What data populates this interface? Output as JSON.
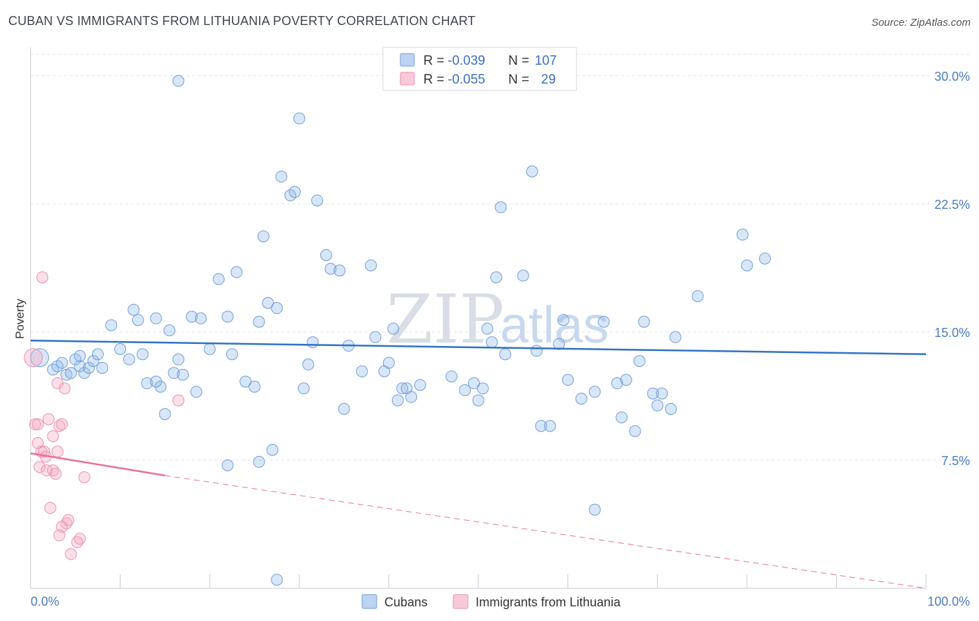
{
  "title": "CUBAN VS IMMIGRANTS FROM LITHUANIA POVERTY CORRELATION CHART",
  "source": "Source: ZipAtlas.com",
  "watermark": {
    "zip": "ZIP",
    "atlas": "atlas"
  },
  "colors": {
    "cubans": "#8fb6e8",
    "cubans_line": "#2f72c8",
    "lithuania": "#f3a7bf",
    "lithuania_line": "#e8709a",
    "grid": "#dde2ea",
    "tick_label": "#4a7cc7"
  },
  "legend_top": {
    "r_label": "R =",
    "n_label": "N =",
    "rows": [
      {
        "series": "Cubans",
        "r": "-0.039",
        "n": "107"
      },
      {
        "series": "Immigrants from Lithuania",
        "r": "-0.055",
        "n": "29"
      }
    ]
  },
  "chart_data": {
    "type": "scatter",
    "title": "CUBAN VS IMMIGRANTS FROM LITHUANIA POVERTY CORRELATION CHART",
    "xlabel": "",
    "ylabel": "Poverty",
    "xlim": [
      0,
      100
    ],
    "ylim": [
      0,
      31.5
    ],
    "y_ticks": [
      7.5,
      15.0,
      22.5,
      30.0
    ],
    "y_tick_labels": [
      "7.5%",
      "15.0%",
      "22.5%",
      "30.0%"
    ],
    "x_tick_labels": [
      "0.0%",
      "100.0%"
    ],
    "grid": true,
    "legend": "top-center",
    "series": [
      {
        "name": "Cubans",
        "trend": {
          "x": [
            0,
            100
          ],
          "y": [
            14.5,
            13.7
          ]
        },
        "points": [
          [
            1,
            13.5
          ],
          [
            2.5,
            12.8
          ],
          [
            3,
            13.0
          ],
          [
            3.5,
            13.2
          ],
          [
            4,
            12.5
          ],
          [
            4.5,
            12.6
          ],
          [
            5,
            13.4
          ],
          [
            5.5,
            13.0
          ],
          [
            6,
            12.6
          ],
          [
            6.5,
            12.9
          ],
          [
            7,
            13.3
          ],
          [
            8,
            12.9
          ],
          [
            5.5,
            13.6
          ],
          [
            7.5,
            13.7
          ],
          [
            9,
            15.4
          ],
          [
            10,
            14.0
          ],
          [
            11,
            13.4
          ],
          [
            11.5,
            16.3
          ],
          [
            12,
            15.7
          ],
          [
            12.5,
            13.7
          ],
          [
            13,
            12.0
          ],
          [
            14,
            15.8
          ],
          [
            14.5,
            11.8
          ],
          [
            15,
            10.2
          ],
          [
            15.5,
            15.1
          ],
          [
            16,
            12.6
          ],
          [
            16.5,
            13.4
          ],
          [
            17,
            12.5
          ],
          [
            18,
            15.9
          ],
          [
            18.5,
            11.5
          ],
          [
            19,
            15.8
          ],
          [
            20,
            14.0
          ],
          [
            21,
            18.1
          ],
          [
            22,
            15.9
          ],
          [
            22.5,
            13.7
          ],
          [
            23,
            18.5
          ],
          [
            16.5,
            29.7
          ],
          [
            24,
            12.1
          ],
          [
            25,
            11.8
          ],
          [
            25.5,
            15.6
          ],
          [
            26,
            20.6
          ],
          [
            26.5,
            16.7
          ],
          [
            27.5,
            16.4
          ],
          [
            28,
            24.1
          ],
          [
            29,
            23.0
          ],
          [
            29.5,
            23.2
          ],
          [
            30,
            27.5
          ],
          [
            30.5,
            11.7
          ],
          [
            31,
            13.1
          ],
          [
            31.5,
            14.4
          ],
          [
            32,
            22.7
          ],
          [
            33,
            19.5
          ],
          [
            33.5,
            18.7
          ],
          [
            34.5,
            18.6
          ],
          [
            35,
            10.5
          ],
          [
            35.5,
            14.2
          ],
          [
            37,
            12.7
          ],
          [
            38,
            18.9
          ],
          [
            38.5,
            14.7
          ],
          [
            39.5,
            12.7
          ],
          [
            40,
            13.2
          ],
          [
            40.5,
            15.2
          ],
          [
            41,
            11.0
          ],
          [
            41.5,
            11.7
          ],
          [
            42,
            11.7
          ],
          [
            42.5,
            11.2
          ],
          [
            43.5,
            11.9
          ],
          [
            47,
            12.4
          ],
          [
            48.5,
            11.6
          ],
          [
            49.5,
            12.0
          ],
          [
            50,
            11.0
          ],
          [
            50.5,
            11.7
          ],
          [
            51,
            15.2
          ],
          [
            51.5,
            14.4
          ],
          [
            52,
            18.2
          ],
          [
            52.5,
            22.3
          ],
          [
            53,
            13.7
          ],
          [
            55,
            18.3
          ],
          [
            56,
            24.4
          ],
          [
            56.5,
            13.9
          ],
          [
            57,
            9.5
          ],
          [
            58,
            9.5
          ],
          [
            59,
            14.3
          ],
          [
            59.5,
            15.7
          ],
          [
            60,
            12.2
          ],
          [
            61.5,
            11.1
          ],
          [
            63,
            11.5
          ],
          [
            64,
            15.6
          ],
          [
            65.5,
            12.0
          ],
          [
            66,
            10.0
          ],
          [
            66.5,
            12.2
          ],
          [
            67.5,
            9.2
          ],
          [
            68,
            13.3
          ],
          [
            68.5,
            15.6
          ],
          [
            69.5,
            11.4
          ],
          [
            70,
            10.7
          ],
          [
            70.5,
            11.4
          ],
          [
            71.5,
            10.5
          ],
          [
            72,
            14.7
          ],
          [
            74.5,
            17.1
          ],
          [
            79.5,
            20.7
          ],
          [
            80,
            18.9
          ],
          [
            82,
            19.3
          ],
          [
            63,
            4.6
          ],
          [
            22,
            7.2
          ],
          [
            25.5,
            7.4
          ],
          [
            27,
            8.1
          ],
          [
            27.5,
            0.5
          ],
          [
            14,
            12.1
          ]
        ]
      },
      {
        "name": "Immigrants from Lithuania",
        "trend": {
          "x": [
            0,
            15
          ],
          "y": [
            7.9,
            6.6
          ]
        },
        "trend_extension": {
          "x": [
            15,
            100
          ],
          "y": [
            6.6,
            0.0
          ]
        },
        "points": [
          [
            0.3,
            13.5
          ],
          [
            0.5,
            9.6
          ],
          [
            0.8,
            8.5
          ],
          [
            1,
            7.1
          ],
          [
            1.2,
            8.0
          ],
          [
            1.5,
            8.0
          ],
          [
            1.7,
            7.7
          ],
          [
            2,
            9.9
          ],
          [
            1.8,
            6.9
          ],
          [
            2.2,
            4.7
          ],
          [
            2.5,
            6.9
          ],
          [
            2.8,
            6.7
          ],
          [
            2.5,
            8.9
          ],
          [
            3,
            8.0
          ],
          [
            3.2,
            9.5
          ],
          [
            3.5,
            9.6
          ],
          [
            3.8,
            11.7
          ],
          [
            3,
            12.0
          ],
          [
            4,
            3.8
          ],
          [
            4.2,
            4.0
          ],
          [
            3.5,
            3.6
          ],
          [
            3.2,
            3.1
          ],
          [
            4.5,
            2.0
          ],
          [
            5.2,
            2.7
          ],
          [
            5.5,
            2.9
          ],
          [
            6,
            6.5
          ],
          [
            16.5,
            11.0
          ],
          [
            1.3,
            18.2
          ],
          [
            0.8,
            9.6
          ]
        ]
      }
    ]
  },
  "bottom_legend": [
    {
      "label": "Cubans"
    },
    {
      "label": "Immigrants from Lithuania"
    }
  ]
}
